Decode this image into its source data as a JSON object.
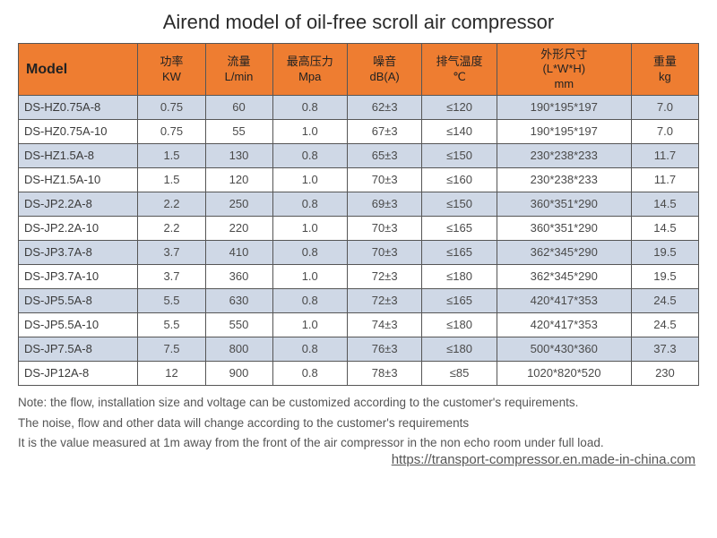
{
  "title": "Airend model of oil-free scroll air compressor",
  "table": {
    "columns": [
      {
        "main": "Model",
        "sub": "",
        "width": "16%"
      },
      {
        "main": "功率",
        "sub": "KW",
        "width": "9%"
      },
      {
        "main": "流量",
        "sub": "L/min",
        "width": "9%"
      },
      {
        "main": "最高压力",
        "sub": "Mpa",
        "width": "10%"
      },
      {
        "main": "噪音",
        "sub": "dB(A)",
        "width": "10%"
      },
      {
        "main": "排气温度",
        "sub": "℃",
        "width": "10%"
      },
      {
        "main": "外形尺寸",
        "sub": "(L*W*H)\nmm",
        "width": "18%"
      },
      {
        "main": "重量",
        "sub": "kg",
        "width": "9%"
      }
    ],
    "rows": [
      [
        "DS-HZ0.75A-8",
        "0.75",
        "60",
        "0.8",
        "62±3",
        "≤120",
        "190*195*197",
        "7.0"
      ],
      [
        "DS-HZ0.75A-10",
        "0.75",
        "55",
        "1.0",
        "67±3",
        "≤140",
        "190*195*197",
        "7.0"
      ],
      [
        "DS-HZ1.5A-8",
        "1.5",
        "130",
        "0.8",
        "65±3",
        "≤150",
        "230*238*233",
        "11.7"
      ],
      [
        "DS-HZ1.5A-10",
        "1.5",
        "120",
        "1.0",
        "70±3",
        "≤160",
        "230*238*233",
        "11.7"
      ],
      [
        "DS-JP2.2A-8",
        "2.2",
        "250",
        "0.8",
        "69±3",
        "≤150",
        "360*351*290",
        "14.5"
      ],
      [
        "DS-JP2.2A-10",
        "2.2",
        "220",
        "1.0",
        "70±3",
        "≤165",
        "360*351*290",
        "14.5"
      ],
      [
        "DS-JP3.7A-8",
        "3.7",
        "410",
        "0.8",
        "70±3",
        "≤165",
        "362*345*290",
        "19.5"
      ],
      [
        "DS-JP3.7A-10",
        "3.7",
        "360",
        "1.0",
        "72±3",
        "≤180",
        "362*345*290",
        "19.5"
      ],
      [
        "DS-JP5.5A-8",
        "5.5",
        "630",
        "0.8",
        "72±3",
        "≤165",
        "420*417*353",
        "24.5"
      ],
      [
        "DS-JP5.5A-10",
        "5.5",
        "550",
        "1.0",
        "74±3",
        "≤180",
        "420*417*353",
        "24.5"
      ],
      [
        "DS-JP7.5A-8",
        "7.5",
        "800",
        "0.8",
        "76±3",
        "≤180",
        "500*430*360",
        "37.3"
      ],
      [
        "DS-JP12A-8",
        "12",
        "900",
        "0.8",
        "78±3",
        "≤85",
        "1020*820*520",
        "230"
      ]
    ]
  },
  "notes": [
    "Note: the flow, installation size and voltage can be customized according to the customer's requirements.",
    "The noise, flow and other data will change according to the customer's requirements",
    "It is the value measured at 1m away from the front of the air compressor in the non echo room under full load."
  ],
  "url": "https://transport-compressor.en.made-in-china.com",
  "style": {
    "header_bg": "#ee7d31",
    "border_color": "#565656",
    "alt_row_bg": "#cfd8e6",
    "title_fontsize": 22,
    "cell_fontsize": 13,
    "notes_fontsize": 13.5
  }
}
